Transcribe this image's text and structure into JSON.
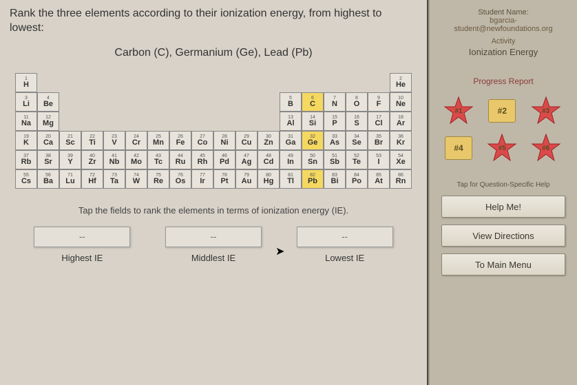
{
  "question": "Rank the three elements according to their ionization energy, from highest to lowest:",
  "elements_line": "Carbon (C), Germanium (Ge), Lead (Pb)",
  "instruction": "Tap the fields to rank the elements in terms of ionization energy (IE).",
  "rank": {
    "slots": [
      {
        "placeholder": "--",
        "label": "Highest IE"
      },
      {
        "placeholder": "--",
        "label": "Middlest IE"
      },
      {
        "placeholder": "--",
        "label": "Lowest IE"
      }
    ]
  },
  "sidebar": {
    "student_label": "Student Name:",
    "student_name": "bgarcia-",
    "student_email": "student@newfoundations.org",
    "activity_label": "Activity",
    "activity": "Ionization Energy",
    "progress_label": "Progress Report",
    "badges": [
      "#1",
      "#2",
      "#3",
      "#4",
      "#5",
      "#6"
    ],
    "tap_help": "Tap for Question-Specific Help",
    "help_btn": "Help Me!",
    "directions_btn": "View Directions",
    "menu_btn": "To Main Menu"
  },
  "highlighted": [
    "C",
    "Ge",
    "Pb"
  ],
  "colors": {
    "bg": "#d8d2c8",
    "sidebar_bg": "#bfb8a8",
    "highlight": "#f5d860",
    "cell_bg": "#e8e4db",
    "star_fill": "#d94a4a",
    "star_stroke": "#a02020",
    "badge_bg": "#e8c86a"
  },
  "ptable": [
    [
      [
        1,
        "H"
      ],
      null,
      null,
      null,
      null,
      null,
      null,
      null,
      null,
      null,
      null,
      null,
      null,
      null,
      null,
      null,
      null,
      [
        2,
        "He"
      ]
    ],
    [
      [
        3,
        "Li"
      ],
      [
        4,
        "Be"
      ],
      null,
      null,
      null,
      null,
      null,
      null,
      null,
      null,
      null,
      null,
      [
        5,
        "B"
      ],
      [
        6,
        "C"
      ],
      [
        7,
        "N"
      ],
      [
        8,
        "O"
      ],
      [
        9,
        "F"
      ],
      [
        10,
        "Ne"
      ]
    ],
    [
      [
        11,
        "Na"
      ],
      [
        12,
        "Mg"
      ],
      null,
      null,
      null,
      null,
      null,
      null,
      null,
      null,
      null,
      null,
      [
        13,
        "Al"
      ],
      [
        14,
        "Si"
      ],
      [
        15,
        "P"
      ],
      [
        16,
        "S"
      ],
      [
        17,
        "Cl"
      ],
      [
        18,
        "Ar"
      ]
    ],
    [
      [
        19,
        "K"
      ],
      [
        20,
        "Ca"
      ],
      [
        21,
        "Sc"
      ],
      [
        22,
        "Ti"
      ],
      [
        23,
        "V"
      ],
      [
        24,
        "Cr"
      ],
      [
        25,
        "Mn"
      ],
      [
        26,
        "Fe"
      ],
      [
        27,
        "Co"
      ],
      [
        28,
        "Ni"
      ],
      [
        29,
        "Cu"
      ],
      [
        30,
        "Zn"
      ],
      [
        31,
        "Ga"
      ],
      [
        32,
        "Ge"
      ],
      [
        33,
        "As"
      ],
      [
        34,
        "Se"
      ],
      [
        35,
        "Br"
      ],
      [
        36,
        "Kr"
      ]
    ],
    [
      [
        37,
        "Rb"
      ],
      [
        38,
        "Sr"
      ],
      [
        39,
        "Y"
      ],
      [
        40,
        "Zr"
      ],
      [
        41,
        "Nb"
      ],
      [
        42,
        "Mo"
      ],
      [
        43,
        "Tc"
      ],
      [
        44,
        "Ru"
      ],
      [
        45,
        "Rh"
      ],
      [
        46,
        "Pd"
      ],
      [
        47,
        "Ag"
      ],
      [
        48,
        "Cd"
      ],
      [
        49,
        "In"
      ],
      [
        50,
        "Sn"
      ],
      [
        51,
        "Sb"
      ],
      [
        52,
        "Te"
      ],
      [
        53,
        "I"
      ],
      [
        54,
        "Xe"
      ]
    ],
    [
      [
        55,
        "Cs"
      ],
      [
        56,
        "Ba"
      ],
      [
        71,
        "Lu"
      ],
      [
        72,
        "Hf"
      ],
      [
        73,
        "Ta"
      ],
      [
        74,
        "W"
      ],
      [
        75,
        "Re"
      ],
      [
        76,
        "Os"
      ],
      [
        77,
        "Ir"
      ],
      [
        78,
        "Pt"
      ],
      [
        79,
        "Au"
      ],
      [
        80,
        "Hg"
      ],
      [
        81,
        "Tl"
      ],
      [
        82,
        "Pb"
      ],
      [
        83,
        "Bi"
      ],
      [
        84,
        "Po"
      ],
      [
        85,
        "At"
      ],
      [
        86,
        "Rn"
      ]
    ]
  ]
}
